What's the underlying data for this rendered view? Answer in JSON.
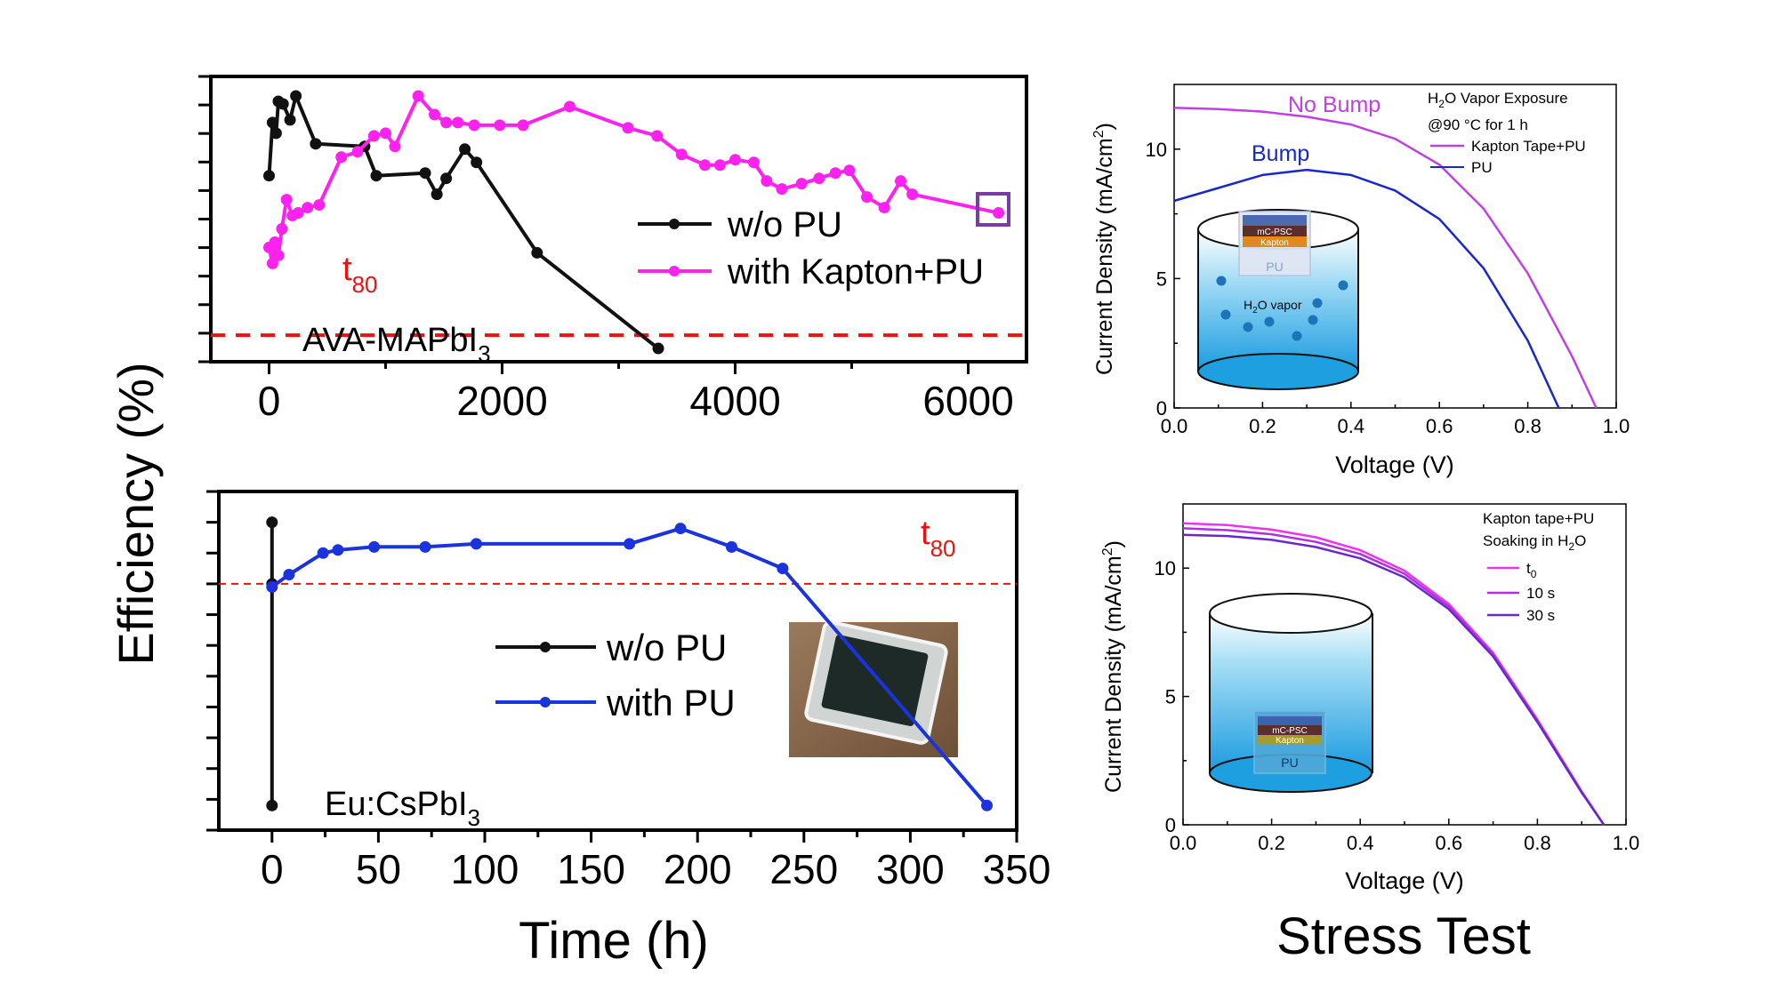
{
  "shared": {
    "ylabel": "Efficiency (%)",
    "xlabel": "Time (h)",
    "right_title": "Stress Test"
  },
  "colors": {
    "black": "#111111",
    "magenta": "#ff22ee",
    "blue": "#1a33dd",
    "red_dash": "#ee1111",
    "violet": "#c040e0",
    "jv_blue": "#1a28c8",
    "marker_box": "#7a3aa8",
    "cyl_blue": "#1e9fe0"
  },
  "chart_data": [
    {
      "id": "top-left",
      "type": "line",
      "title": "",
      "xlabel": "",
      "ylabel": "",
      "xlim": [
        -500,
        6500
      ],
      "ylim": [
        0,
        10
      ],
      "xticks": [
        0,
        2000,
        4000,
        6000
      ],
      "xtick_labels": [
        "0",
        "2000",
        "4000",
        "6000"
      ],
      "yticks_count": 11,
      "t80_line": 1.0,
      "t80_label": "t",
      "t80_sub": "80",
      "material_label": "AVA-MAPbI",
      "material_sub": "3",
      "legend_position": "center-right",
      "series": [
        {
          "name": "w/o PU",
          "color": "#111111",
          "x": [
            0,
            30,
            60,
            80,
            120,
            180,
            230,
            400,
            820,
            920,
            1340,
            1440,
            1520,
            1680,
            1780,
            2300,
            3340
          ],
          "y": [
            7.0,
            9.0,
            8.6,
            9.8,
            9.7,
            9.1,
            10.0,
            8.2,
            8.1,
            7.0,
            7.1,
            6.3,
            6.9,
            8.0,
            7.5,
            4.1,
            0.5
          ]
        },
        {
          "name": "with Kapton+PU",
          "color": "#ff22ee",
          "x": [
            0,
            30,
            50,
            80,
            110,
            150,
            200,
            250,
            330,
            430,
            620,
            760,
            900,
            1000,
            1080,
            1280,
            1420,
            1520,
            1620,
            1760,
            1980,
            2180,
            2580,
            3080,
            3330,
            3540,
            3740,
            3870,
            4000,
            4160,
            4270,
            4400,
            4570,
            4720,
            4860,
            4980,
            5130,
            5280,
            5420,
            5520,
            6260
          ],
          "y": [
            4.3,
            3.7,
            4.5,
            4.0,
            5.0,
            6.1,
            5.5,
            5.6,
            5.8,
            5.9,
            7.7,
            7.9,
            8.5,
            8.6,
            8.1,
            10.0,
            9.3,
            9.0,
            9.0,
            8.9,
            8.9,
            8.9,
            9.6,
            8.8,
            8.5,
            7.8,
            7.4,
            7.4,
            7.6,
            7.5,
            6.8,
            6.5,
            6.7,
            6.9,
            7.1,
            7.2,
            6.2,
            5.8,
            6.8,
            6.3,
            5.6
          ]
        }
      ]
    },
    {
      "id": "bottom-left",
      "type": "line",
      "title": "",
      "xlabel": "",
      "ylabel": "",
      "xlim": [
        -25,
        350
      ],
      "ylim": [
        0,
        11
      ],
      "xticks": [
        0,
        50,
        100,
        150,
        200,
        250,
        300,
        350
      ],
      "xtick_labels": [
        "0",
        "50",
        "100",
        "150",
        "200",
        "250",
        "300",
        "350"
      ],
      "yticks_count": 12,
      "t80_line": 8.0,
      "t80_label": "t",
      "t80_sub": "80",
      "material_label": "Eu:CsPbI",
      "material_sub": "3",
      "legend_position": "center",
      "series": [
        {
          "name": "w/o PU",
          "color": "#111111",
          "x": [
            0,
            0,
            0
          ],
          "y": [
            10.0,
            8.0,
            0.8
          ]
        },
        {
          "name": "with PU",
          "color": "#1a33dd",
          "x": [
            0,
            8,
            24,
            31,
            48,
            72,
            96,
            168,
            192,
            216,
            240,
            336
          ],
          "y": [
            7.9,
            8.3,
            9.0,
            9.1,
            9.2,
            9.2,
            9.3,
            9.3,
            9.8,
            9.2,
            8.5,
            0.8
          ]
        }
      ]
    },
    {
      "id": "top-right",
      "type": "line",
      "title": "",
      "xlabel": "Voltage (V)",
      "ylabel": "Current Density (mA/cm",
      "ylabel_sup": "2",
      "xlim": [
        0.0,
        1.0
      ],
      "ylim": [
        0,
        12.5
      ],
      "xticks": [
        0.0,
        0.2,
        0.4,
        0.6,
        0.8,
        1.0
      ],
      "xtick_labels": [
        "0.0",
        "0.2",
        "0.4",
        "0.6",
        "0.8",
        "1.0"
      ],
      "yticks": [
        0,
        5,
        10
      ],
      "ytick_labels": [
        "0",
        "5",
        "10"
      ],
      "legend_title": "H",
      "legend_title_sub": "2",
      "legend_title_rest": "O Vapor Exposure",
      "legend_subtitle": "@90 °C for 1 h",
      "annotations": [
        "No Bump",
        "Bump"
      ],
      "inset": {
        "lines": [
          "mC-PSC",
          "Kapton",
          "PU"
        ],
        "vapor": "H",
        "vapor_sub": "2",
        "vapor_rest": "O vapor"
      },
      "series": [
        {
          "name": "Kapton Tape+PU",
          "color": "#c040e0",
          "x": [
            0.0,
            0.1,
            0.2,
            0.3,
            0.4,
            0.5,
            0.6,
            0.7,
            0.8,
            0.9,
            0.955
          ],
          "y": [
            11.6,
            11.55,
            11.45,
            11.25,
            10.95,
            10.4,
            9.4,
            7.7,
            5.2,
            2.0,
            0.0
          ]
        },
        {
          "name": "PU",
          "color": "#1a28c8",
          "x": [
            0.0,
            0.1,
            0.2,
            0.3,
            0.4,
            0.5,
            0.6,
            0.7,
            0.8,
            0.87
          ],
          "y": [
            8.0,
            8.5,
            9.0,
            9.2,
            9.0,
            8.4,
            7.3,
            5.4,
            2.6,
            0.0
          ]
        }
      ]
    },
    {
      "id": "bottom-right",
      "type": "line",
      "title": "",
      "xlabel": "Voltage (V)",
      "ylabel": "Current Density (mA/cm",
      "ylabel_sup": "2",
      "xlim": [
        0.0,
        1.0
      ],
      "ylim": [
        0,
        12.5
      ],
      "xticks": [
        0.0,
        0.2,
        0.4,
        0.6,
        0.8,
        1.0
      ],
      "xtick_labels": [
        "0.0",
        "0.2",
        "0.4",
        "0.6",
        "0.8",
        "1.0"
      ],
      "yticks": [
        0,
        5,
        10
      ],
      "ytick_labels": [
        "0",
        "5",
        "10"
      ],
      "legend_title": "Kapton tape+PU",
      "legend_subtitle": "Soaking in H",
      "legend_subtitle_sub": "2",
      "legend_subtitle_rest": "O",
      "inset": {
        "lines": [
          "mC-PSC",
          "Kapton",
          "PU"
        ]
      },
      "series": [
        {
          "name": "t",
          "name_sub": "0",
          "color": "#ee33ee",
          "x": [
            0.0,
            0.1,
            0.2,
            0.3,
            0.4,
            0.5,
            0.6,
            0.7,
            0.8,
            0.9,
            0.95
          ],
          "y": [
            11.75,
            11.68,
            11.5,
            11.2,
            10.7,
            9.9,
            8.6,
            6.7,
            4.1,
            1.3,
            0.0
          ]
        },
        {
          "name": "10 s",
          "color": "#b030e0",
          "x": [
            0.0,
            0.1,
            0.2,
            0.3,
            0.4,
            0.5,
            0.6,
            0.7,
            0.8,
            0.9,
            0.95
          ],
          "y": [
            11.55,
            11.48,
            11.32,
            11.02,
            10.55,
            9.78,
            8.5,
            6.63,
            4.05,
            1.28,
            0.0
          ]
        },
        {
          "name": "30 s",
          "color": "#6a28c8",
          "x": [
            0.0,
            0.1,
            0.2,
            0.3,
            0.4,
            0.5,
            0.6,
            0.7,
            0.8,
            0.9,
            0.95
          ],
          "y": [
            11.3,
            11.25,
            11.1,
            10.82,
            10.38,
            9.64,
            8.4,
            6.56,
            4.0,
            1.25,
            0.0
          ]
        }
      ]
    }
  ]
}
